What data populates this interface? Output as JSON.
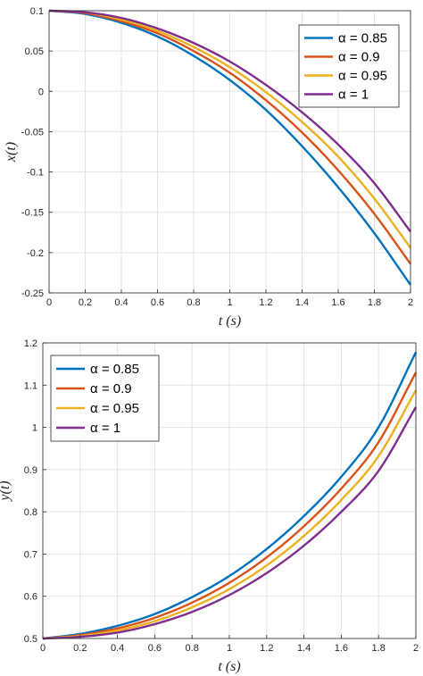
{
  "chart_data": [
    {
      "type": "line",
      "title": "",
      "xlabel": "t (s)",
      "ylabel": "x(t)",
      "xlim": [
        0,
        2
      ],
      "ylim": [
        -0.25,
        0.1
      ],
      "xticks": [
        0,
        0.2,
        0.4,
        0.6,
        0.8,
        1,
        1.2,
        1.4,
        1.6,
        1.8,
        2
      ],
      "xtick_labels": [
        "0",
        "0.2",
        "0.4",
        "0.6",
        "0.8",
        "1",
        "1.2",
        "1.4",
        "1.6",
        "1.8",
        "2"
      ],
      "yticks": [
        -0.25,
        -0.2,
        -0.15,
        -0.1,
        -0.05,
        0,
        0.05,
        0.1
      ],
      "ytick_labels": [
        "-0.25",
        "-0.2",
        "-0.15",
        "-0.1",
        "-0.05",
        "0",
        "0.05",
        "0.1"
      ],
      "grid": true,
      "legend_position": "top-right",
      "x": [
        0,
        0.2,
        0.4,
        0.6,
        0.8,
        1.0,
        1.2,
        1.4,
        1.6,
        1.8,
        2.0
      ],
      "series": [
        {
          "name": "α = 0.85",
          "color": "#0072BD",
          "values": [
            0.1,
            0.096,
            0.085,
            0.068,
            0.044,
            0.014,
            -0.023,
            -0.068,
            -0.119,
            -0.176,
            -0.24
          ]
        },
        {
          "name": "α = 0.9",
          "color": "#D95319",
          "values": [
            0.1,
            0.097,
            0.087,
            0.072,
            0.05,
            0.023,
            -0.011,
            -0.051,
            -0.098,
            -0.152,
            -0.214
          ]
        },
        {
          "name": "α = 0.95",
          "color": "#EDB120",
          "values": [
            0.1,
            0.098,
            0.089,
            0.075,
            0.055,
            0.03,
            -0.001,
            -0.038,
            -0.081,
            -0.133,
            -0.194
          ]
        },
        {
          "name": "α = 1",
          "color": "#7E2F8E",
          "values": [
            0.1,
            0.098,
            0.091,
            0.078,
            0.06,
            0.037,
            0.008,
            -0.026,
            -0.066,
            -0.114,
            -0.174
          ]
        }
      ]
    },
    {
      "type": "line",
      "title": "",
      "xlabel": "t (s)",
      "ylabel": "y(t)",
      "xlim": [
        0,
        2
      ],
      "ylim": [
        0.5,
        1.2
      ],
      "xticks": [
        0,
        0.2,
        0.4,
        0.6,
        0.8,
        1,
        1.2,
        1.4,
        1.6,
        1.8,
        2
      ],
      "xtick_labels": [
        "0",
        "0.2",
        "0.4",
        "0.6",
        "0.8",
        "1",
        "1.2",
        "1.4",
        "1.6",
        "1.8",
        "2"
      ],
      "yticks": [
        0.5,
        0.6,
        0.7,
        0.8,
        0.9,
        1,
        1.1,
        1.2
      ],
      "ytick_labels": [
        "0.5",
        "0.6",
        "0.7",
        "0.8",
        "0.9",
        "1",
        "1.1",
        "1.2"
      ],
      "grid": true,
      "legend_position": "top-left",
      "x": [
        0,
        0.2,
        0.4,
        0.6,
        0.8,
        1.0,
        1.2,
        1.4,
        1.6,
        1.8,
        2.0
      ],
      "series": [
        {
          "name": "α = 0.85",
          "color": "#0072BD",
          "values": [
            0.5,
            0.511,
            0.53,
            0.558,
            0.598,
            0.648,
            0.712,
            0.79,
            0.883,
            1.0,
            1.178
          ]
        },
        {
          "name": "α = 0.9",
          "color": "#D95319",
          "values": [
            0.5,
            0.508,
            0.524,
            0.549,
            0.585,
            0.632,
            0.692,
            0.766,
            0.855,
            0.965,
            1.13
          ]
        },
        {
          "name": "α = 0.95",
          "color": "#EDB120",
          "values": [
            0.5,
            0.506,
            0.519,
            0.541,
            0.574,
            0.617,
            0.673,
            0.743,
            0.828,
            0.932,
            1.088
          ]
        },
        {
          "name": "α = 1",
          "color": "#7E2F8E",
          "values": [
            0.5,
            0.504,
            0.514,
            0.534,
            0.563,
            0.603,
            0.655,
            0.72,
            0.8,
            0.897,
            1.048
          ]
        }
      ]
    }
  ]
}
